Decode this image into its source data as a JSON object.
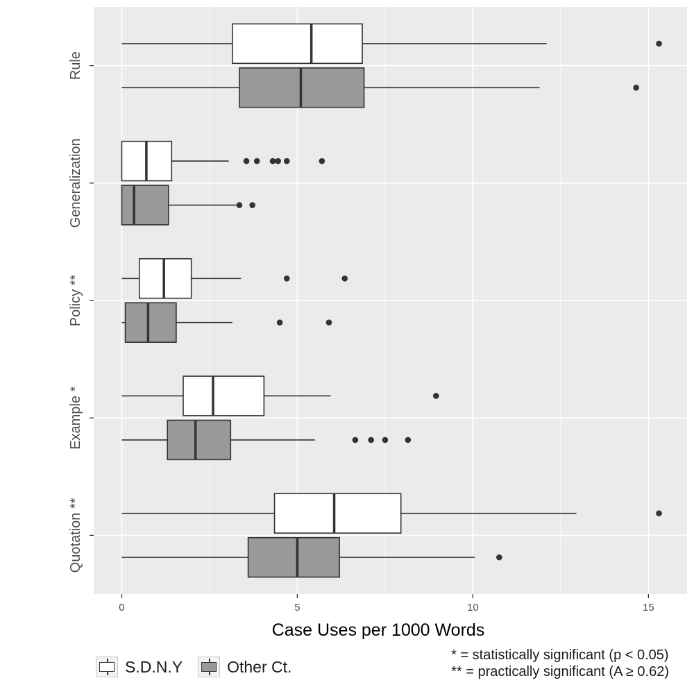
{
  "chart_data": {
    "type": "boxplot",
    "orientation": "horizontal",
    "xlabel": "Case Uses per 1000 Words",
    "ylabel": "",
    "xlim": [
      -0.8,
      16.1
    ],
    "xticks": [
      0,
      5,
      10,
      15
    ],
    "grid": true,
    "categories": [
      "Rule",
      "Generalization",
      "Policy **",
      "Example *",
      "Quotation **"
    ],
    "series": [
      {
        "name": "S.D.N.Y",
        "color": "#ffffff",
        "boxes": [
          {
            "category": "Rule",
            "min": 0,
            "q1": 3.15,
            "median": 5.4,
            "q3": 6.85,
            "max": 12.1,
            "outliers": [
              15.3
            ]
          },
          {
            "category": "Generalization",
            "min": 0,
            "q1": 0,
            "median": 0.7,
            "q3": 1.42,
            "max": 3.05,
            "outliers": [
              3.55,
              3.85,
              4.3,
              4.45,
              4.7,
              5.7
            ]
          },
          {
            "category": "Policy **",
            "min": 0,
            "q1": 0.5,
            "median": 1.2,
            "q3": 1.98,
            "max": 3.4,
            "outliers": [
              4.7,
              6.35
            ]
          },
          {
            "category": "Example *",
            "min": 0,
            "q1": 1.75,
            "median": 2.6,
            "q3": 4.05,
            "max": 5.95,
            "outliers": [
              8.95
            ]
          },
          {
            "category": "Quotation **",
            "min": 0,
            "q1": 4.35,
            "median": 6.05,
            "q3": 7.95,
            "max": 12.95,
            "outliers": [
              15.3
            ]
          }
        ]
      },
      {
        "name": "Other Ct.",
        "color": "#999999",
        "boxes": [
          {
            "category": "Rule",
            "min": 0,
            "q1": 3.35,
            "median": 5.1,
            "q3": 6.9,
            "max": 11.9,
            "outliers": [
              14.65
            ]
          },
          {
            "category": "Generalization",
            "min": 0,
            "q1": 0,
            "median": 0.35,
            "q3": 1.33,
            "max": 3.35,
            "outliers": [
              3.35,
              3.72
            ]
          },
          {
            "category": "Policy **",
            "min": 0,
            "q1": 0.1,
            "median": 0.75,
            "q3": 1.55,
            "max": 3.15,
            "outliers": [
              4.5,
              5.9
            ]
          },
          {
            "category": "Example *",
            "min": 0,
            "q1": 1.3,
            "median": 2.1,
            "q3": 3.1,
            "max": 5.5,
            "outliers": [
              6.65,
              7.1,
              7.5,
              8.15
            ]
          },
          {
            "category": "Quotation **",
            "min": 0,
            "q1": 3.6,
            "median": 5.0,
            "q3": 6.2,
            "max": 10.05,
            "outliers": [
              10.75
            ]
          }
        ]
      }
    ],
    "legend_position": "bottom-left",
    "notes": [
      "* = statistically significant (p < 0.05)",
      "** = practically significant (A ≥ 0.62)"
    ]
  }
}
